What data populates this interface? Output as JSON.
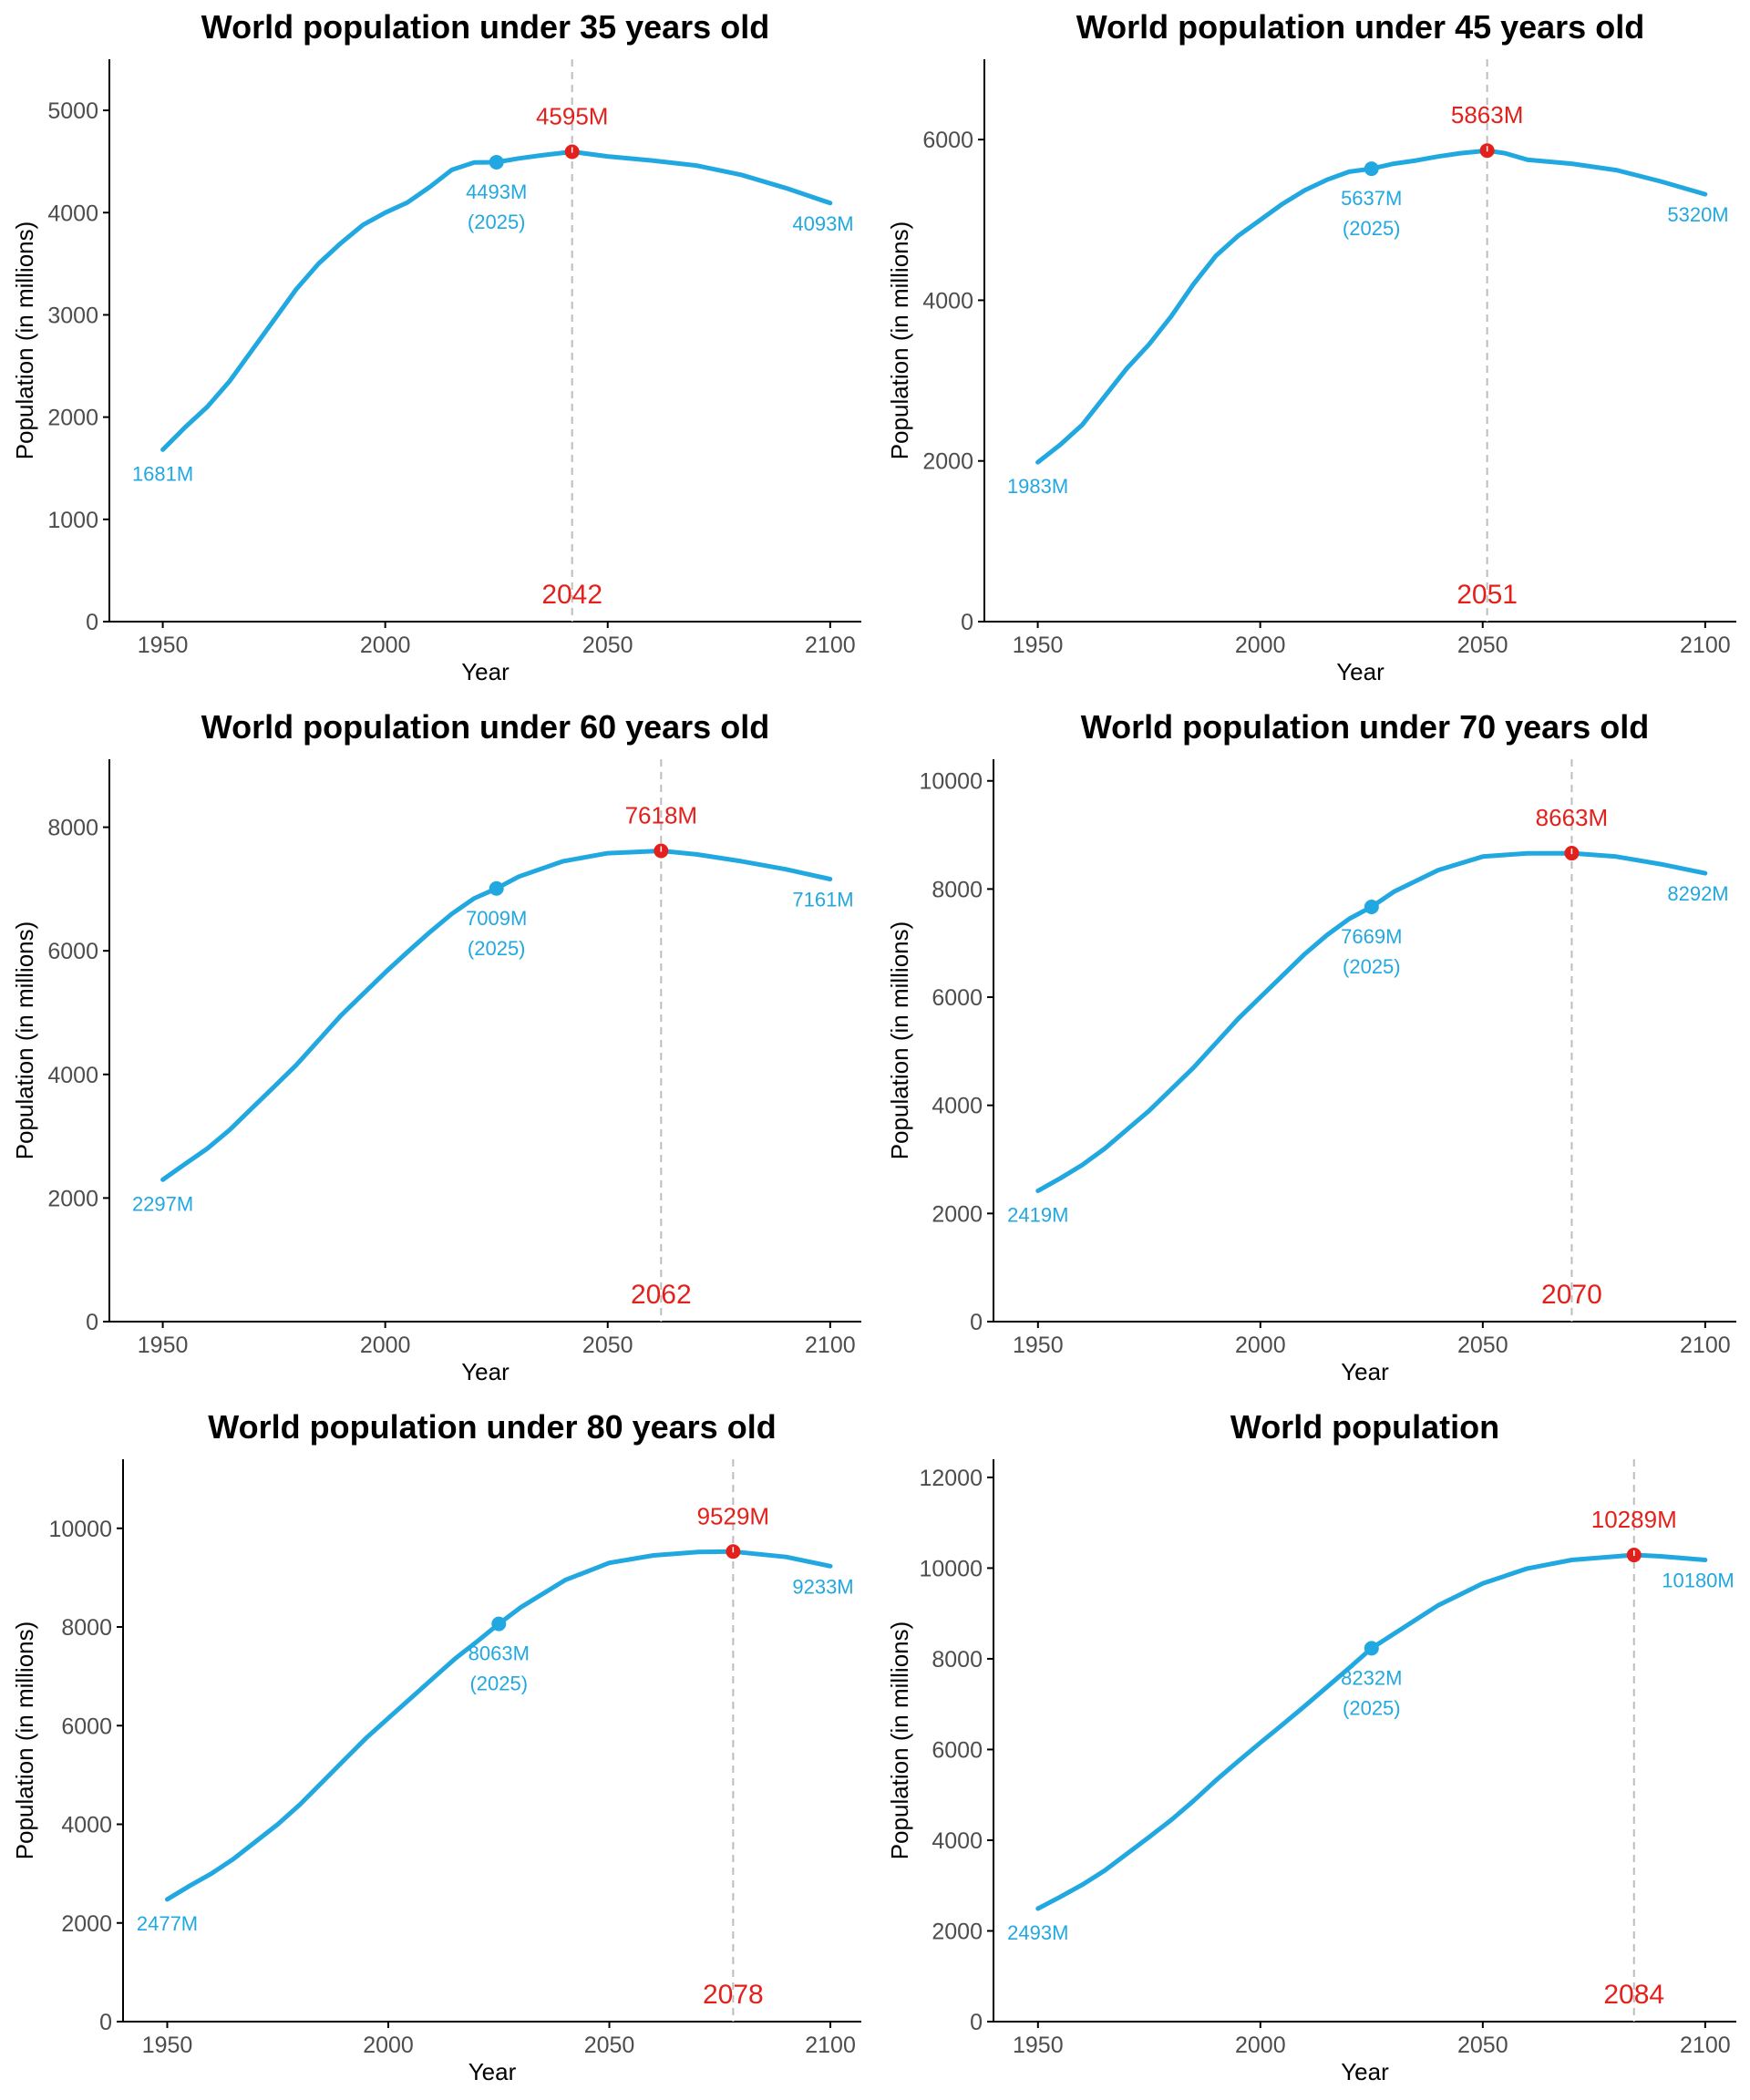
{
  "colors": {
    "series": "#22a8e0",
    "peak": "#e3211c",
    "vline": "#bdbdbd",
    "axis": "#000000",
    "tick_text": "#4d4d4d"
  },
  "chart_data": [
    {
      "type": "line",
      "title": "World population under 35 years old",
      "xlabel": "Year",
      "ylabel": "Population (in millions)",
      "xlim": [
        1938,
        2107
      ],
      "ylim": [
        0,
        5500
      ],
      "xticks": [
        1950,
        2000,
        2050,
        2100
      ],
      "yticks": [
        0,
        1000,
        2000,
        3000,
        4000,
        5000
      ],
      "grid": false,
      "x": [
        1950,
        1955,
        1960,
        1965,
        1970,
        1975,
        1980,
        1985,
        1990,
        1995,
        2000,
        2005,
        2010,
        2015,
        2020,
        2025,
        2030,
        2035,
        2042,
        2050,
        2060,
        2070,
        2080,
        2090,
        2100
      ],
      "y": [
        1681,
        1900,
        2100,
        2350,
        2650,
        2950,
        3250,
        3500,
        3700,
        3880,
        4000,
        4100,
        4250,
        4420,
        4490,
        4493,
        4530,
        4560,
        4595,
        4550,
        4510,
        4460,
        4370,
        4240,
        4093
      ],
      "labels": {
        "start": {
          "x": 1950,
          "value": 1681,
          "text": "1681M"
        },
        "current": {
          "x": 2025,
          "value": 4493,
          "text": "4493M",
          "year_text": "(2025)"
        },
        "peak": {
          "x": 2042,
          "value": 4595,
          "text": "4595M",
          "year_text": "2042"
        },
        "end": {
          "x": 2100,
          "value": 4093,
          "text": "4093M"
        }
      }
    },
    {
      "type": "line",
      "title": "World population under 45 years old",
      "xlabel": "Year",
      "ylabel": "Population (in millions)",
      "xlim": [
        1938,
        2107
      ],
      "ylim": [
        0,
        7000
      ],
      "xticks": [
        1950,
        2000,
        2050,
        2100
      ],
      "yticks": [
        0,
        2000,
        4000,
        6000
      ],
      "grid": false,
      "x": [
        1950,
        1955,
        1960,
        1965,
        1970,
        1975,
        1980,
        1985,
        1990,
        1995,
        2000,
        2005,
        2010,
        2015,
        2020,
        2025,
        2030,
        2035,
        2040,
        2045,
        2051,
        2055,
        2060,
        2070,
        2080,
        2090,
        2100
      ],
      "y": [
        1983,
        2200,
        2450,
        2800,
        3150,
        3450,
        3800,
        4200,
        4550,
        4800,
        5000,
        5200,
        5370,
        5500,
        5600,
        5637,
        5700,
        5740,
        5790,
        5830,
        5863,
        5830,
        5750,
        5700,
        5620,
        5480,
        5320
      ],
      "labels": {
        "start": {
          "x": 1950,
          "value": 1983,
          "text": "1983M"
        },
        "current": {
          "x": 2025,
          "value": 5637,
          "text": "5637M",
          "year_text": "(2025)"
        },
        "peak": {
          "x": 2051,
          "value": 5863,
          "text": "5863M",
          "year_text": "2051"
        },
        "end": {
          "x": 2100,
          "value": 5320,
          "text": "5320M"
        }
      }
    },
    {
      "type": "line",
      "title": "World population under 60 years old",
      "xlabel": "Year",
      "ylabel": "Population (in millions)",
      "xlim": [
        1938,
        2107
      ],
      "ylim": [
        0,
        9100
      ],
      "xticks": [
        1950,
        2000,
        2050,
        2100
      ],
      "yticks": [
        0,
        2000,
        4000,
        6000,
        8000
      ],
      "grid": false,
      "x": [
        1950,
        1955,
        1960,
        1965,
        1970,
        1975,
        1980,
        1985,
        1990,
        1995,
        2000,
        2005,
        2010,
        2015,
        2020,
        2025,
        2030,
        2040,
        2050,
        2062,
        2070,
        2080,
        2090,
        2100
      ],
      "y": [
        2297,
        2550,
        2800,
        3100,
        3450,
        3800,
        4150,
        4550,
        4950,
        5300,
        5650,
        5980,
        6300,
        6600,
        6850,
        7009,
        7200,
        7450,
        7580,
        7618,
        7560,
        7450,
        7320,
        7161
      ],
      "labels": {
        "start": {
          "x": 1950,
          "value": 2297,
          "text": "2297M"
        },
        "current": {
          "x": 2025,
          "value": 7009,
          "text": "7009M",
          "year_text": "(2025)"
        },
        "peak": {
          "x": 2062,
          "value": 7618,
          "text": "7618M",
          "year_text": "2062"
        },
        "end": {
          "x": 2100,
          "value": 7161,
          "text": "7161M"
        }
      }
    },
    {
      "type": "line",
      "title": "World population under 70 years old",
      "xlabel": "Year",
      "ylabel": "Population (in millions)",
      "xlim": [
        1940,
        2107
      ],
      "ylim": [
        0,
        10400
      ],
      "xticks": [
        1950,
        2000,
        2050,
        2100
      ],
      "yticks": [
        0,
        2000,
        4000,
        6000,
        8000,
        10000
      ],
      "grid": false,
      "x": [
        1950,
        1955,
        1960,
        1965,
        1970,
        1975,
        1980,
        1985,
        1990,
        1995,
        2000,
        2005,
        2010,
        2015,
        2020,
        2025,
        2030,
        2040,
        2050,
        2060,
        2070,
        2080,
        2090,
        2100
      ],
      "y": [
        2419,
        2650,
        2900,
        3200,
        3550,
        3900,
        4300,
        4700,
        5150,
        5600,
        6000,
        6400,
        6800,
        7150,
        7450,
        7669,
        7950,
        8350,
        8600,
        8660,
        8663,
        8600,
        8460,
        8292
      ],
      "labels": {
        "start": {
          "x": 1950,
          "value": 2419,
          "text": "2419M"
        },
        "current": {
          "x": 2025,
          "value": 7669,
          "text": "7669M",
          "year_text": "(2025)"
        },
        "peak": {
          "x": 2070,
          "value": 8663,
          "text": "8663M",
          "year_text": "2070"
        },
        "end": {
          "x": 2100,
          "value": 8292,
          "text": "8292M"
        }
      }
    },
    {
      "type": "line",
      "title": "World population under 80 years old",
      "xlabel": "Year",
      "ylabel": "Population (in millions)",
      "xlim": [
        1940,
        2107
      ],
      "ylim": [
        0,
        11400
      ],
      "xticks": [
        1950,
        2000,
        2050,
        2100
      ],
      "yticks": [
        0,
        2000,
        4000,
        6000,
        8000,
        10000
      ],
      "grid": false,
      "x": [
        1950,
        1955,
        1960,
        1965,
        1970,
        1975,
        1980,
        1985,
        1990,
        1995,
        2000,
        2005,
        2010,
        2015,
        2020,
        2025,
        2030,
        2040,
        2050,
        2060,
        2070,
        2078,
        2090,
        2100
      ],
      "y": [
        2477,
        2750,
        3000,
        3300,
        3650,
        4000,
        4400,
        4850,
        5300,
        5750,
        6150,
        6550,
        6950,
        7350,
        7700,
        8063,
        8400,
        8950,
        9300,
        9450,
        9520,
        9529,
        9420,
        9233
      ],
      "labels": {
        "start": {
          "x": 1950,
          "value": 2477,
          "text": "2477M"
        },
        "current": {
          "x": 2025,
          "value": 8063,
          "text": "8063M",
          "year_text": "(2025)"
        },
        "peak": {
          "x": 2078,
          "value": 9529,
          "text": "9529M",
          "year_text": "2078"
        },
        "end": {
          "x": 2100,
          "value": 9233,
          "text": "9233M"
        }
      }
    },
    {
      "type": "line",
      "title": "World population",
      "xlabel": "Year",
      "ylabel": "Population (in millions)",
      "xlim": [
        1940,
        2107
      ],
      "ylim": [
        0,
        12400
      ],
      "xticks": [
        1950,
        2000,
        2050,
        2100
      ],
      "yticks": [
        0,
        2000,
        4000,
        6000,
        8000,
        10000,
        12000
      ],
      "grid": false,
      "x": [
        1950,
        1955,
        1960,
        1965,
        1970,
        1975,
        1980,
        1985,
        1990,
        1995,
        2000,
        2005,
        2010,
        2015,
        2020,
        2025,
        2030,
        2040,
        2050,
        2060,
        2070,
        2084,
        2090,
        2100
      ],
      "y": [
        2493,
        2750,
        3020,
        3330,
        3700,
        4070,
        4450,
        4870,
        5320,
        5740,
        6150,
        6550,
        6960,
        7380,
        7800,
        8232,
        8550,
        9180,
        9660,
        9990,
        10180,
        10289,
        10260,
        10180
      ],
      "labels": {
        "start": {
          "x": 1950,
          "value": 2493,
          "text": "2493M"
        },
        "current": {
          "x": 2025,
          "value": 8232,
          "text": "8232M",
          "year_text": "(2025)"
        },
        "peak": {
          "x": 2084,
          "value": 10289,
          "text": "10289M",
          "year_text": "2084"
        },
        "end": {
          "x": 2100,
          "value": 10180,
          "text": "10180M"
        }
      }
    }
  ]
}
